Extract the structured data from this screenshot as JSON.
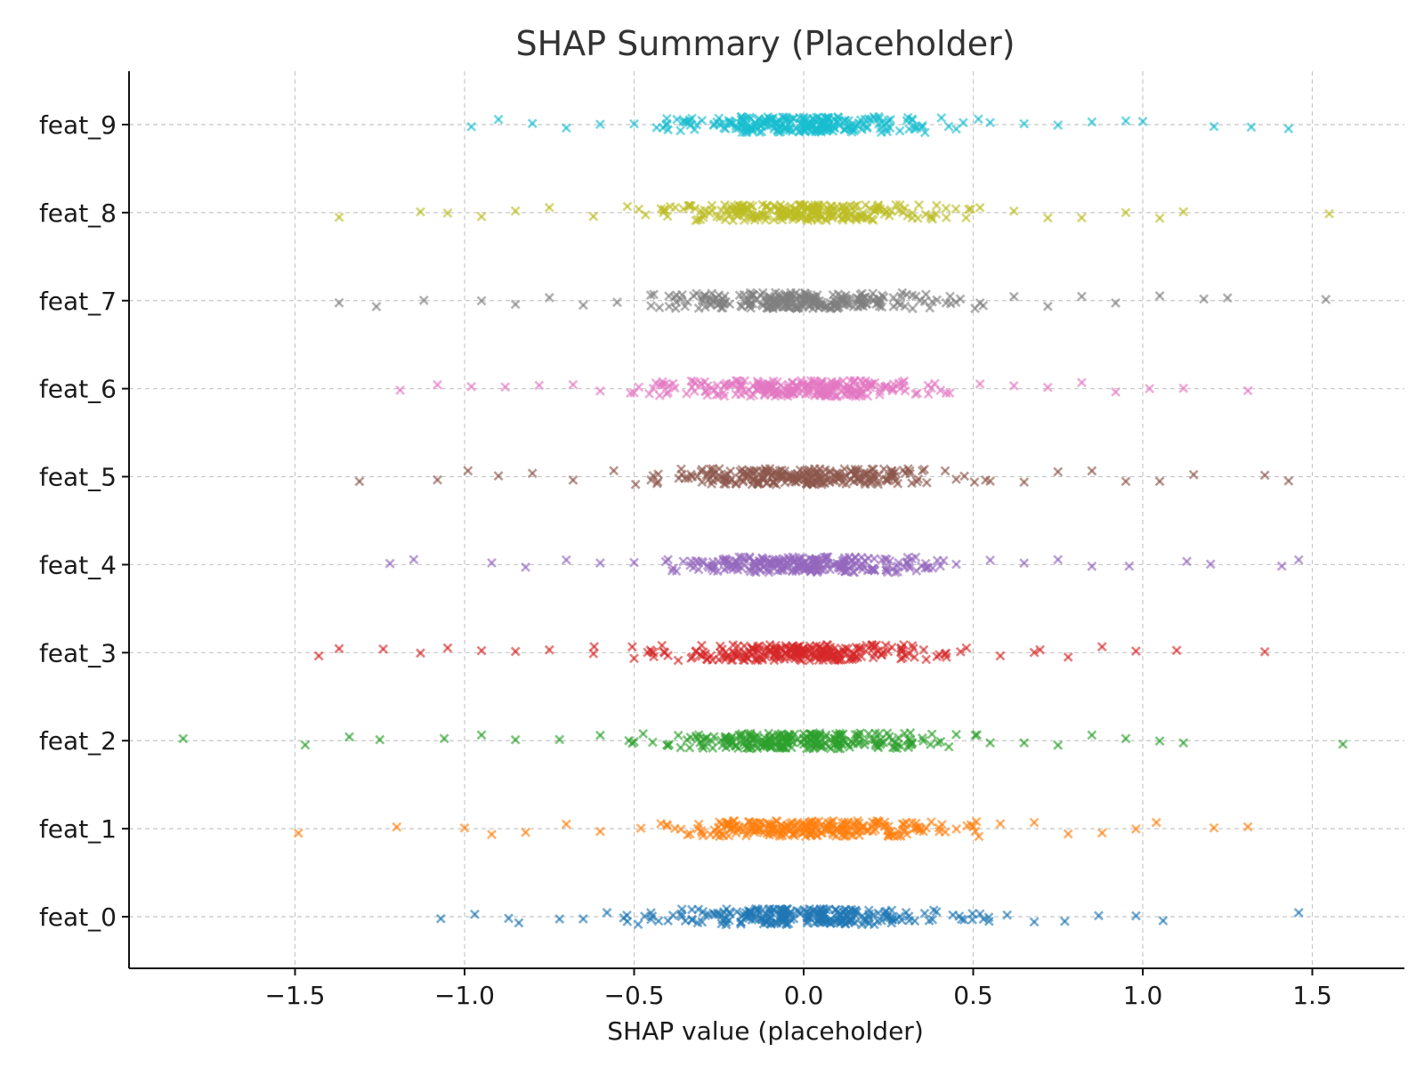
{
  "chart_data": {
    "type": "scatter",
    "title": "SHAP Summary (Placeholder)",
    "xlabel": "SHAP value (placeholder)",
    "ylabel": "",
    "xlim": [
      -2.0,
      1.75
    ],
    "xticks": [
      -1.5,
      -1.0,
      -0.5,
      0.0,
      0.5,
      1.0,
      1.5
    ],
    "xtick_labels": [
      "−1.5",
      "−1.0",
      "−0.5",
      "0.0",
      "0.5",
      "1.0",
      "1.5"
    ],
    "grid": true,
    "marker": "x",
    "features": [
      "feat_0",
      "feat_1",
      "feat_2",
      "feat_3",
      "feat_4",
      "feat_5",
      "feat_6",
      "feat_7",
      "feat_8",
      "feat_9"
    ],
    "colors": [
      "#1f77b4",
      "#ff7f0e",
      "#2ca02c",
      "#d62728",
      "#9467bd",
      "#8c564b",
      "#e377c2",
      "#7f7f7f",
      "#bcbd22",
      "#17becf"
    ],
    "series": [
      {
        "name": "feat_0",
        "x_range": [
          -1.07,
          1.46
        ],
        "values": [
          -1.07,
          -0.97,
          -0.87,
          -0.84,
          -0.72,
          -0.65,
          -0.58,
          -0.52,
          -0.45,
          -0.4,
          -0.33,
          -0.28,
          -0.22,
          -0.17,
          -0.1,
          -0.04,
          0.02,
          0.08,
          0.13,
          0.18,
          0.24,
          0.31,
          0.38,
          0.44,
          0.52,
          0.6,
          0.68,
          0.77,
          0.87,
          0.98,
          1.06,
          1.46
        ]
      },
      {
        "name": "feat_1",
        "x_range": [
          -1.49,
          1.31
        ],
        "values": [
          -1.49,
          -1.2,
          -1.0,
          -0.92,
          -0.82,
          -0.7,
          -0.6,
          -0.48,
          -0.38,
          -0.3,
          -0.2,
          -0.12,
          -0.05,
          0.02,
          0.08,
          0.15,
          0.22,
          0.3,
          0.4,
          0.5,
          0.58,
          0.68,
          0.78,
          0.88,
          0.98,
          1.04,
          1.21,
          1.31
        ]
      },
      {
        "name": "feat_2",
        "x_range": [
          -1.83,
          1.59
        ],
        "values": [
          -1.83,
          -1.47,
          -1.34,
          -1.25,
          -1.06,
          -0.95,
          -0.85,
          -0.72,
          -0.6,
          -0.5,
          -0.4,
          -0.3,
          -0.22,
          -0.12,
          -0.05,
          0.02,
          0.1,
          0.18,
          0.26,
          0.35,
          0.45,
          0.55,
          0.65,
          0.75,
          0.85,
          0.95,
          1.05,
          1.12,
          1.59
        ]
      },
      {
        "name": "feat_3",
        "x_range": [
          -1.43,
          1.36
        ],
        "values": [
          -1.43,
          -1.37,
          -1.24,
          -1.13,
          -1.05,
          -0.95,
          -0.85,
          -0.75,
          -0.62,
          -0.5,
          -0.4,
          -0.3,
          -0.2,
          -0.1,
          -0.02,
          0.06,
          0.15,
          0.22,
          0.3,
          0.4,
          0.48,
          0.58,
          0.68,
          0.78,
          0.88,
          0.98,
          1.1,
          1.36
        ]
      },
      {
        "name": "feat_4",
        "x_range": [
          -1.22,
          1.46
        ],
        "values": [
          -1.22,
          -1.15,
          -0.92,
          -0.82,
          -0.7,
          -0.6,
          -0.5,
          -0.4,
          -0.3,
          -0.2,
          -0.12,
          -0.04,
          0.04,
          0.12,
          0.2,
          0.28,
          0.36,
          0.45,
          0.55,
          0.65,
          0.75,
          0.85,
          0.96,
          1.13,
          1.2,
          1.41,
          1.46
        ]
      },
      {
        "name": "feat_5",
        "x_range": [
          -1.31,
          1.43
        ],
        "values": [
          -1.31,
          -1.08,
          -0.99,
          -0.9,
          -0.8,
          -0.68,
          -0.56,
          -0.45,
          -0.35,
          -0.25,
          -0.15,
          -0.06,
          0.02,
          0.1,
          0.18,
          0.26,
          0.35,
          0.45,
          0.55,
          0.65,
          0.75,
          0.85,
          0.95,
          1.05,
          1.15,
          1.36,
          1.43
        ]
      },
      {
        "name": "feat_6",
        "x_range": [
          -1.19,
          1.31
        ],
        "values": [
          -1.19,
          -1.08,
          -0.98,
          -0.88,
          -0.78,
          -0.68,
          -0.6,
          -0.5,
          -0.4,
          -0.3,
          -0.2,
          -0.1,
          -0.02,
          0.06,
          0.15,
          0.24,
          0.33,
          0.42,
          0.52,
          0.62,
          0.72,
          0.82,
          0.92,
          1.02,
          1.12,
          1.31
        ]
      },
      {
        "name": "feat_7",
        "x_range": [
          -1.37,
          1.54
        ],
        "values": [
          -1.37,
          -1.26,
          -1.12,
          -0.95,
          -0.85,
          -0.75,
          -0.65,
          -0.55,
          -0.45,
          -0.35,
          -0.25,
          -0.15,
          -0.05,
          0.04,
          0.12,
          0.22,
          0.32,
          0.42,
          0.52,
          0.62,
          0.72,
          0.82,
          0.92,
          1.05,
          1.18,
          1.25,
          1.54
        ]
      },
      {
        "name": "feat_8",
        "x_range": [
          -1.37,
          1.55
        ],
        "values": [
          -1.37,
          -1.13,
          -1.05,
          -0.95,
          -0.85,
          -0.75,
          -0.62,
          -0.52,
          -0.42,
          -0.32,
          -0.22,
          -0.12,
          -0.04,
          0.04,
          0.12,
          0.22,
          0.32,
          0.42,
          0.52,
          0.62,
          0.72,
          0.82,
          0.95,
          1.05,
          1.12,
          1.55
        ]
      },
      {
        "name": "feat_9",
        "x_range": [
          -0.98,
          1.43
        ],
        "values": [
          -0.98,
          -0.9,
          -0.8,
          -0.7,
          -0.6,
          -0.5,
          -0.4,
          -0.3,
          -0.2,
          -0.1,
          -0.02,
          0.06,
          0.15,
          0.25,
          0.35,
          0.45,
          0.55,
          0.65,
          0.75,
          0.85,
          0.95,
          1.0,
          1.21,
          1.32,
          1.43
        ]
      }
    ]
  }
}
